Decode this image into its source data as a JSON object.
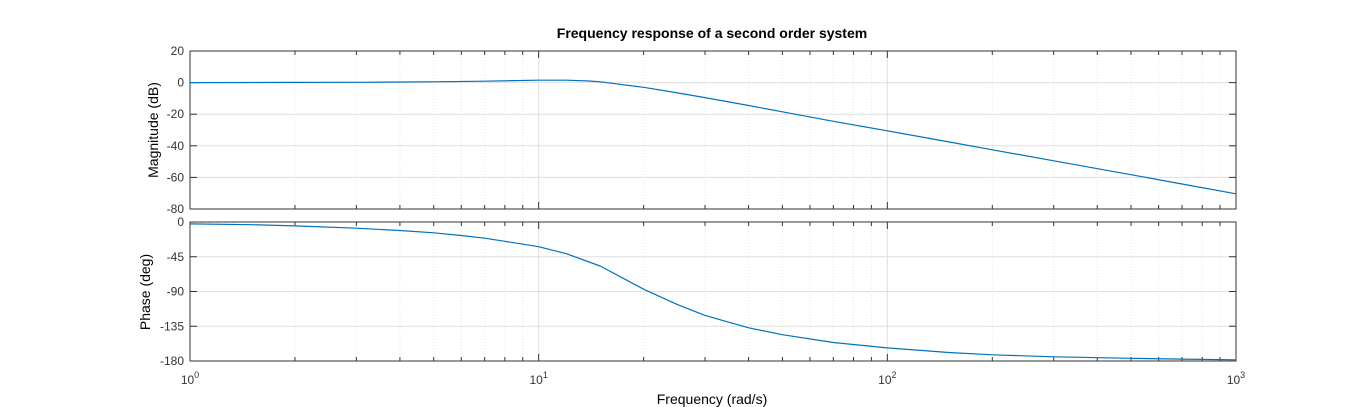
{
  "chart_data": {
    "type": "line",
    "title": "Frequency response of a second order system",
    "xlabel": "Frequency  (rad/s)",
    "xscale": "log",
    "xlim": [
      1,
      1000
    ],
    "grid": true,
    "line_color": "#0072BD",
    "panels": [
      {
        "name": "magnitude",
        "ylabel": "Magnitude (dB)",
        "ylim": [
          -80,
          20
        ],
        "yticks": [
          20,
          0,
          -20,
          -40,
          -60,
          -80
        ],
        "series": [
          {
            "x": [
              1,
              2,
              3,
              5,
              7,
              10,
              12,
              14,
              15,
              17,
              20,
              25,
              30,
              40,
              50,
              70,
              100,
              150,
              200,
              300,
              500,
              700,
              1000
            ],
            "values": [
              0.0,
              0.1,
              0.2,
              0.5,
              0.9,
              1.5,
              1.5,
              1.0,
              0.5,
              -1.0,
              -3.0,
              -6.5,
              -9.5,
              -14.5,
              -18.5,
              -24.5,
              -30.5,
              -37.5,
              -42.5,
              -49.5,
              -58.3,
              -64.2,
              -70.4
            ]
          }
        ]
      },
      {
        "name": "phase",
        "ylabel": "Phase (deg)",
        "ylim": [
          -180,
          0
        ],
        "yticks": [
          0,
          -45,
          -90,
          -135,
          -180
        ],
        "series": [
          {
            "x": [
              1,
              1.5,
              2,
              3,
              4,
              5,
              6,
              7,
              8,
              10,
              12,
              15,
              18,
              20,
              25,
              30,
              40,
              50,
              70,
              100,
              150,
              200,
              300,
              500,
              700,
              1000
            ],
            "values": [
              -2.5,
              -3.5,
              -5,
              -8,
              -11,
              -14,
              -17.5,
              -21,
              -25,
              -32,
              -41,
              -57,
              -76,
              -87,
              -107,
              -121,
              -137,
              -146,
              -156,
              -163,
              -169,
              -172,
              -174.5,
              -176.5,
              -177.5,
              -178.5
            ]
          }
        ]
      }
    ]
  }
}
